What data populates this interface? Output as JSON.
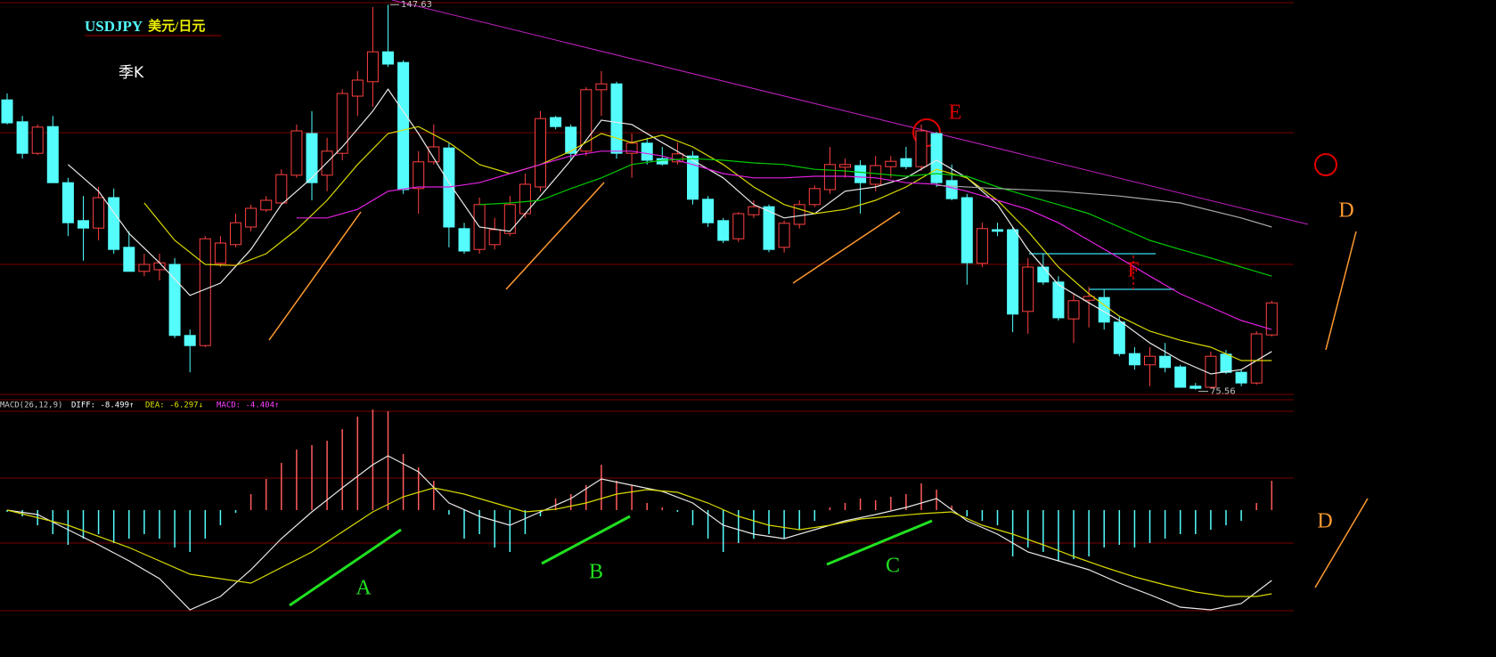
{
  "chart_data": [
    {
      "type": "candlestick",
      "symbol": "USDJPY",
      "symbol_name": "美元/日元",
      "period": "季K",
      "ylim": [
        74.5,
        148.5
      ],
      "up_color": "#ff4040",
      "down_color": "#54fcfc",
      "high_marker": 147.63,
      "low_marker": 75.56,
      "open": [
        129.8,
        125.7,
        119.8,
        124.8,
        114.3,
        107.2,
        105.8,
        111.5,
        102.2,
        97.7,
        98.0,
        99.0,
        85.7,
        83.8,
        99.2,
        102.7,
        106.0,
        109.2,
        110.5,
        115.7,
        123.5,
        115.7,
        119.8,
        130.5,
        133.2,
        138.8,
        136.8,
        113.2,
        118.2,
        120.8,
        105.7,
        101.8,
        102.7,
        104.8,
        108.5,
        113.5,
        126.5,
        124.7,
        120.2,
        131.7,
        132.8,
        119.8,
        121.7,
        118.8,
        118.2,
        119.3,
        111.2,
        107.2,
        103.8,
        108.3,
        109.8,
        102.2,
        106.5,
        110.2,
        113.0,
        117.2,
        117.5,
        114.0,
        117.3,
        118.8,
        117.3,
        123.5,
        114.7,
        111.5,
        99.2,
        105.5,
        105.5,
        90.2,
        98.5,
        95.7,
        88.8,
        92.3,
        92.8,
        88.2,
        82.3,
        80.2,
        81.8,
        79.8,
        76.2,
        76.0,
        82.2,
        78.8,
        76.8,
        85.8
      ],
      "high": [
        131.0,
        126.8,
        125.2,
        126.8,
        115.2,
        111.8,
        113.5,
        113.2,
        105.2,
        101.0,
        101.0,
        100.2,
        86.8,
        104.3,
        104.3,
        108.5,
        110.2,
        111.8,
        116.8,
        125.2,
        127.7,
        122.7,
        131.8,
        135.2,
        147.2,
        147.63,
        137.2,
        120.2,
        125.2,
        121.8,
        106.8,
        111.5,
        107.7,
        111.8,
        116.0,
        127.7,
        126.8,
        125.2,
        132.2,
        135.2,
        133.2,
        123.5,
        122.7,
        121.0,
        121.8,
        120.2,
        111.8,
        107.7,
        108.8,
        111.0,
        110.2,
        107.2,
        111.0,
        113.8,
        121.0,
        118.8,
        118.5,
        119.3,
        119.3,
        121.0,
        125.2,
        123.8,
        117.7,
        112.2,
        106.8,
        106.8,
        106.0,
        100.2,
        101.0,
        96.8,
        93.5,
        94.8,
        94.3,
        89.3,
        83.5,
        83.5,
        84.3,
        80.2,
        76.8,
        82.7,
        83.0,
        79.3,
        86.5,
        92.2
      ],
      "low": [
        125.2,
        118.8,
        119.5,
        114.3,
        104.3,
        99.7,
        103.5,
        101.0,
        97.7,
        96.8,
        96.0,
        85.2,
        78.8,
        83.5,
        98.5,
        102.2,
        105.2,
        108.8,
        110.2,
        115.2,
        111.0,
        112.7,
        118.5,
        126.8,
        128.5,
        136.0,
        112.2,
        108.5,
        117.7,
        102.2,
        101.0,
        101.0,
        101.8,
        104.3,
        107.7,
        112.7,
        124.3,
        118.5,
        119.3,
        126.8,
        118.8,
        115.2,
        117.7,
        117.5,
        117.7,
        110.2,
        106.0,
        103.0,
        103.2,
        107.7,
        101.3,
        101.2,
        105.7,
        109.7,
        112.2,
        115.2,
        108.5,
        112.7,
        115.2,
        116.8,
        116.5,
        113.5,
        111.0,
        95.2,
        98.5,
        104.3,
        86.3,
        86.0,
        95.2,
        88.5,
        84.3,
        87.2,
        86.8,
        81.8,
        79.3,
        76.2,
        78.8,
        75.9,
        75.56,
        75.7,
        78.5,
        76.2,
        76.5,
        85.5
      ],
      "close": [
        125.5,
        119.8,
        124.7,
        114.3,
        106.8,
        105.8,
        111.5,
        101.8,
        97.7,
        99.0,
        99.3,
        85.7,
        83.8,
        103.8,
        103.0,
        106.8,
        109.5,
        111.0,
        115.8,
        124.0,
        114.3,
        120.2,
        131.0,
        133.5,
        138.8,
        136.5,
        113.0,
        118.2,
        121.0,
        106.0,
        101.5,
        110.2,
        105.5,
        110.2,
        114.0,
        126.3,
        124.8,
        119.8,
        131.7,
        132.8,
        119.8,
        121.7,
        118.5,
        117.8,
        119.7,
        111.2,
        106.8,
        103.5,
        108.5,
        109.8,
        101.8,
        106.7,
        110.2,
        113.2,
        117.7,
        117.7,
        114.3,
        117.5,
        118.3,
        117.3,
        124.0,
        114.3,
        111.3,
        99.3,
        105.7,
        105.2,
        89.7,
        98.5,
        95.7,
        89.0,
        92.2,
        93.0,
        88.2,
        82.3,
        80.2,
        81.8,
        79.7,
        76.0,
        75.8,
        81.8,
        78.8,
        76.8,
        86.0,
        91.8
      ],
      "series": [
        {
          "color": "#e8e8e8",
          "x": [
            4,
            6,
            8,
            10,
            12,
            14,
            16,
            18,
            20,
            22,
            24,
            25,
            27,
            29,
            31,
            33,
            35,
            37,
            39,
            41,
            43,
            45,
            47,
            49,
            51,
            53,
            55,
            57,
            59,
            61,
            63,
            65,
            67,
            69,
            71,
            73,
            75,
            77,
            79,
            81,
            83
          ],
          "values": [
            117.7,
            112.7,
            104.8,
            99.3,
            93.2,
            95.5,
            101.8,
            110.2,
            115.2,
            121.0,
            127.7,
            131.8,
            123.5,
            114.3,
            106.0,
            105.2,
            111.8,
            118.5,
            126.0,
            125.2,
            121.8,
            118.5,
            115.2,
            110.2,
            107.7,
            108.5,
            112.7,
            113.5,
            115.2,
            118.5,
            115.2,
            110.2,
            101.8,
            95.2,
            91.8,
            88.5,
            84.3,
            81.0,
            78.5,
            79.3,
            82.7
          ]
        },
        {
          "color": "#d8d800",
          "x": [
            9,
            11,
            13,
            15,
            17,
            19,
            21,
            23,
            25,
            27,
            29,
            31,
            33,
            35,
            37,
            39,
            41,
            43,
            45,
            47,
            49,
            51,
            53,
            55,
            57,
            59,
            61,
            63,
            65,
            67,
            69,
            71,
            73,
            75,
            77,
            79,
            81,
            83
          ],
          "values": [
            110.5,
            103.5,
            99.0,
            98.8,
            101.0,
            105.5,
            111.0,
            117.7,
            123.5,
            124.8,
            121.8,
            117.7,
            116.0,
            117.7,
            120.2,
            123.5,
            121.8,
            123.2,
            121.0,
            117.7,
            113.5,
            110.2,
            108.5,
            109.3,
            111.0,
            113.5,
            116.8,
            115.2,
            111.0,
            105.2,
            98.5,
            93.5,
            89.3,
            86.5,
            84.8,
            83.5,
            81.0,
            81.0
          ]
        },
        {
          "color": "#e020e0",
          "x": [
            19,
            21,
            23,
            25,
            27,
            29,
            31,
            33,
            35,
            37,
            39,
            41,
            43,
            45,
            47,
            49,
            51,
            53,
            55,
            57,
            59,
            61,
            63,
            65,
            67,
            69,
            71,
            73,
            75,
            77,
            79,
            81,
            83
          ],
          "values": [
            107.7,
            107.7,
            109.3,
            112.7,
            113.5,
            113.5,
            114.3,
            116.0,
            117.7,
            119.3,
            120.2,
            120.2,
            119.3,
            117.7,
            116.0,
            115.2,
            115.2,
            115.5,
            115.5,
            115.2,
            114.3,
            114.0,
            112.7,
            111.0,
            109.3,
            106.8,
            103.5,
            100.2,
            96.8,
            93.5,
            91.0,
            88.5,
            86.8
          ]
        },
        {
          "color": "#00c800",
          "x": [
            31,
            33,
            35,
            37,
            39,
            41,
            43,
            45,
            47,
            49,
            51,
            53,
            55,
            57,
            59,
            61,
            63,
            65,
            67,
            69,
            71,
            73,
            75,
            77,
            79,
            81,
            83
          ],
          "values": [
            110.2,
            110.5,
            111.0,
            113.2,
            115.2,
            117.7,
            118.5,
            118.8,
            118.5,
            118.0,
            117.7,
            116.8,
            116.5,
            116.0,
            115.5,
            116.0,
            115.5,
            113.5,
            111.8,
            110.2,
            108.5,
            106.0,
            103.5,
            101.8,
            100.2,
            98.5,
            96.8
          ]
        },
        {
          "color": "#a8a8a8",
          "x": [
            61,
            65,
            69,
            73,
            77,
            81,
            83
          ],
          "values": [
            113.8,
            113.2,
            112.7,
            111.8,
            110.5,
            107.7,
            106.0
          ]
        }
      ],
      "annotations": [
        "E",
        "F",
        "D"
      ]
    },
    {
      "type": "macd",
      "readouts": [
        {
          "text": "MACD(26,12,9)",
          "color": "#c8c8c8"
        },
        {
          "text": "DIFF: -8.499↑",
          "color": "#ffffff"
        },
        {
          "text": "DEA: -6.297↓",
          "color": "#e0e000"
        },
        {
          "text": "MACD: -4.404↑",
          "color": "#ff40ff"
        }
      ],
      "ylim": [
        -11.7,
        11.5
      ],
      "up_color": "#ff5a5a",
      "down_color": "#54fcfc",
      "values": [
        -0.2,
        -0.7,
        -1.7,
        -2.7,
        -3.9,
        -3.2,
        -2.7,
        -3.7,
        -3.2,
        -2.7,
        -3.2,
        -4.2,
        -4.7,
        -3.2,
        -1.7,
        -0.3,
        1.8,
        3.5,
        5.3,
        6.8,
        7.3,
        7.8,
        9.1,
        10.5,
        11.3,
        11.1,
        6.3,
        4.8,
        3.3,
        -0.5,
        -3.2,
        -2.7,
        -4.2,
        -4.7,
        -2.7,
        -0.7,
        1.3,
        1.8,
        2.8,
        5.1,
        3.3,
        2.8,
        0.8,
        0.3,
        -0.2,
        -1.7,
        -3.2,
        -4.7,
        -3.7,
        -3.2,
        -2.7,
        -3.2,
        -2.2,
        -1.2,
        0.3,
        0.8,
        1.3,
        1.1,
        1.5,
        1.8,
        3.0,
        2.3,
        0.5,
        -0.7,
        -1.2,
        -1.7,
        -5.2,
        -4.2,
        -4.7,
        -5.7,
        -5.5,
        -5.2,
        -4.2,
        -3.9,
        -4.2,
        -3.7,
        -3.2,
        -2.7,
        -2.7,
        -2.2,
        -1.7,
        -1.2,
        0.8,
        3.3
      ],
      "series": [
        {
          "color": "#e8e8e8",
          "x": [
            0,
            2,
            4,
            6,
            8,
            10,
            12,
            14,
            16,
            18,
            20,
            22,
            24,
            25,
            27,
            29,
            31,
            33,
            35,
            37,
            39,
            41,
            43,
            45,
            47,
            49,
            51,
            53,
            55,
            57,
            59,
            61,
            63,
            65,
            67,
            69,
            71,
            73,
            75,
            77,
            79,
            81,
            83
          ],
          "values": [
            0,
            -0.5,
            -2.2,
            -3.9,
            -5.7,
            -7.7,
            -11.2,
            -9.7,
            -6.7,
            -3.2,
            -0.2,
            2.5,
            5.1,
            6.1,
            4.3,
            0.8,
            -0.7,
            -1.7,
            -0.2,
            1.3,
            3.5,
            2.8,
            2.1,
            0.8,
            -1.7,
            -2.7,
            -3.2,
            -2.2,
            -1.2,
            -0.5,
            0.3,
            1.3,
            -1.2,
            -2.7,
            -4.7,
            -5.7,
            -6.7,
            -8.2,
            -9.5,
            -10.9,
            -11.2,
            -10.5,
            -7.9
          ]
        },
        {
          "color": "#d8d800",
          "x": [
            0,
            4,
            8,
            12,
            16,
            20,
            24,
            26,
            28,
            30,
            32,
            34,
            36,
            38,
            40,
            42,
            44,
            46,
            48,
            50,
            52,
            54,
            56,
            58,
            60,
            62,
            64,
            66,
            68,
            70,
            72,
            74,
            76,
            78,
            80,
            82,
            83
          ],
          "values": [
            0,
            -1.7,
            -4.2,
            -7.2,
            -8.2,
            -4.7,
            -0.2,
            1.5,
            2.5,
            1.8,
            0.8,
            -0.2,
            0.1,
            0.8,
            1.8,
            2.3,
            2.0,
            0.8,
            -0.7,
            -1.7,
            -2.2,
            -1.7,
            -1.0,
            -0.7,
            -0.4,
            -0.2,
            -1.7,
            -2.7,
            -3.9,
            -5.2,
            -6.4,
            -7.5,
            -8.4,
            -9.2,
            -9.7,
            -9.7,
            -9.4
          ]
        }
      ],
      "annotations": [
        "A",
        "B",
        "C",
        "D"
      ]
    }
  ]
}
